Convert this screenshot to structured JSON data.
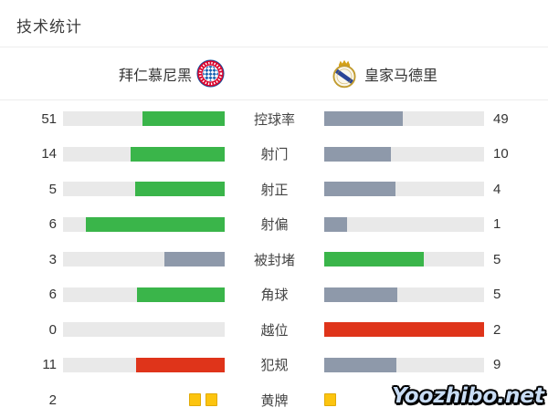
{
  "title": "技术统计",
  "teams": {
    "home": {
      "name": "拜仁慕尼黑",
      "logo": "bayern-munich-crest"
    },
    "away": {
      "name": "皇家马德里",
      "logo": "real-madrid-crest"
    }
  },
  "colors": {
    "win": "#3ab54a",
    "lose": "#8e99aa",
    "bad": "#df341a",
    "card": "#fcc40f",
    "track": "#e9e9e9"
  },
  "rows": [
    {
      "label": "控球率",
      "home": {
        "value": "51",
        "pct": 51.0,
        "color": "win"
      },
      "away": {
        "value": "49",
        "pct": 49.0,
        "color": "lose"
      }
    },
    {
      "label": "射门",
      "home": {
        "value": "14",
        "pct": 58.3,
        "color": "win"
      },
      "away": {
        "value": "10",
        "pct": 41.7,
        "color": "lose"
      }
    },
    {
      "label": "射正",
      "home": {
        "value": "5",
        "pct": 55.6,
        "color": "win"
      },
      "away": {
        "value": "4",
        "pct": 44.4,
        "color": "lose"
      }
    },
    {
      "label": "射偏",
      "home": {
        "value": "6",
        "pct": 85.7,
        "color": "win"
      },
      "away": {
        "value": "1",
        "pct": 14.3,
        "color": "lose"
      }
    },
    {
      "label": "被封堵",
      "home": {
        "value": "3",
        "pct": 37.5,
        "color": "lose"
      },
      "away": {
        "value": "5",
        "pct": 62.5,
        "color": "win"
      }
    },
    {
      "label": "角球",
      "home": {
        "value": "6",
        "pct": 54.5,
        "color": "win"
      },
      "away": {
        "value": "5",
        "pct": 45.5,
        "color": "lose"
      }
    },
    {
      "label": "越位",
      "home": {
        "value": "0",
        "pct": 0,
        "color": "lose"
      },
      "away": {
        "value": "2",
        "pct": 100,
        "color": "bad"
      }
    },
    {
      "label": "犯规",
      "home": {
        "value": "11",
        "pct": 55.0,
        "color": "bad"
      },
      "away": {
        "value": "9",
        "pct": 45.0,
        "color": "lose"
      }
    },
    {
      "label": "黄牌",
      "home": {
        "value": "2",
        "cards": 2
      },
      "away": {
        "value": "",
        "cards": 1
      }
    }
  ],
  "watermark": "Yoozhibo.net",
  "chart_data": {
    "type": "bar",
    "title": "技术统计",
    "categories": [
      "控球率",
      "射门",
      "射正",
      "射偏",
      "被封堵",
      "角球",
      "越位",
      "犯规",
      "黄牌"
    ],
    "series": [
      {
        "name": "拜仁慕尼黑",
        "values": [
          51,
          14,
          5,
          6,
          3,
          6,
          0,
          11,
          2
        ]
      },
      {
        "name": "皇家马德里",
        "values": [
          49,
          10,
          4,
          1,
          5,
          5,
          2,
          9,
          1
        ]
      }
    ],
    "layout": "mirrored horizontal bar pairs toward center; fill length = value / row total; winner green, loser slate, negative-stat leader red; yellow cards drawn as card icons",
    "legend_position": "top as team header with crests",
    "grid": false
  }
}
